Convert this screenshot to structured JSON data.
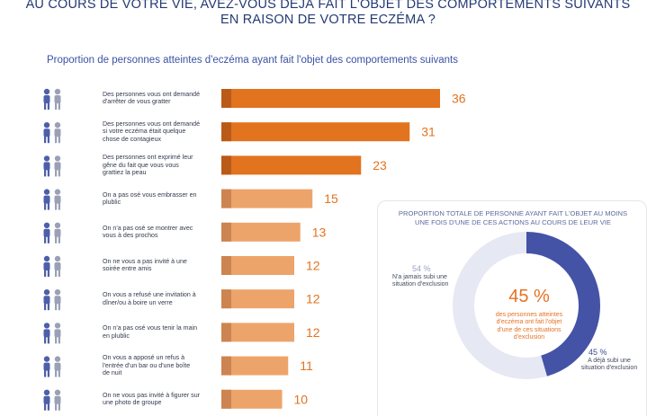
{
  "header": {
    "title_line1": "AU COURS DE VOTRE VIE, AVEZ-VOUS DÉJÀ FAIT L'OBJET DES COMPORTEMENTS SUIVANTS",
    "title_line2": "EN RAISON DE VOTRE ECZÉMA ?",
    "subtitle": "Proportion de personnes atteintes d'eczéma ayant fait l'objet des comportements suivants"
  },
  "colors": {
    "dark_orange": "#e2731f",
    "light_orange": "#eda46b",
    "accent_square_dark": "#b95a17",
    "accent_square_light": "#cc8450",
    "donut_blue": "#4453a6",
    "donut_grey": "#e6e8f3",
    "icon_blue": "#4d5fa8",
    "icon_grey": "#9aa0b6"
  },
  "chart_data": [
    {
      "type": "bar",
      "orientation": "horizontal",
      "categories": [
        "Des personnes vous ont demandé d'arrêter de vous gratter",
        "Des personnes vous ont demandé si votre eczéma était quelque chose de contagieux",
        "Des personnes ont exprimé leur gêne du fait que vous vous grattiez la peau",
        "On a pas osé vous embrasser en plublic",
        "On n'a pas osé se montrer avec vous à des prochos",
        "On ne vous a pas invité à une soirée entre amis",
        "On vous a refusé une invitation à dîner/ou à boire un verre",
        "On n'a pas osé vous tenir la main en plublic",
        "On vous a apposé un refus à l'entrée d'un bar ou d'une boîte de nuit",
        "On ne vous pas invité à figurer sur une photo de groupe"
      ],
      "label_lines": [
        [
          "Des personnes vous ont demandé",
          "d'arrêter de vous gratter"
        ],
        [
          "Des personnes vous ont demandé",
          "si votre eczéma était quelque",
          "chose de contagieux"
        ],
        [
          "Des personnes ont exprimé leur",
          "gêne du fait que vous vous",
          "grattiez la peau"
        ],
        [
          "On a pas osé vous embrasser en",
          "plublic"
        ],
        [
          "On n'a pas osé se montrer avec",
          "vous à des prochos"
        ],
        [
          "On ne vous a pas invité à une",
          "soirée entre amis"
        ],
        [
          "On vous a refusé une invitation à",
          "dîner/ou à boire un verre"
        ],
        [
          "On n'a pas osé vous tenir la main",
          "en plublic"
        ],
        [
          "On vous a apposé un refus à",
          "l'entrée d'un bar ou d'une boîte",
          "de nuit"
        ],
        [
          "On ne vous pas invité à figurer sur",
          "une photo de groupe"
        ]
      ],
      "values": [
        36,
        31,
        23,
        15,
        13,
        12,
        12,
        12,
        11,
        10
      ],
      "value_labels": [
        "36",
        "31",
        "23",
        "15",
        "13",
        "12",
        "12",
        "12",
        "11",
        "10"
      ],
      "bar_shade": [
        "dark",
        "dark",
        "dark",
        "light",
        "light",
        "light",
        "light",
        "light",
        "light",
        "light"
      ],
      "icons": [
        "people-scratching-icon",
        "people-asking-icon",
        "people-discomfort-icon",
        "couple-icon",
        "couple-walking-icon",
        "party-icon",
        "dinner-table-icon",
        "holding-hands-icon",
        "nightclub-refusal-icon",
        "group-photo-icon"
      ],
      "xlim": [
        0,
        36
      ],
      "grid": false,
      "legend": "none"
    },
    {
      "type": "pie",
      "style": "donut",
      "title_line1": "PROPORTION TOTALE DE PERSONNE AYANT FAIT L'OBJET AU MOINS",
      "title_line2": "UNE FOIS D'UNE DE CES ACTIONS AU COURS DE LEUR VIE",
      "slices": [
        {
          "label": "N'a jamais subi une situation d'exclusion",
          "value": 54,
          "value_label": "54 %",
          "desc_lines": [
            "N'a jamais subi une",
            "situation d'exclusion"
          ],
          "color": "#e6e8f3"
        },
        {
          "label": "A déjà subi une situation d'exclusion",
          "value": 45,
          "value_label": "45 %",
          "desc_lines": [
            "A déjà subi une",
            "situation d'exclusion"
          ],
          "color": "#4453a6"
        }
      ],
      "center_value": "45 %",
      "center_desc_lines": [
        "des personnes atteintes",
        "d'eczéma ont fait l'objet",
        "d'une de ces situations",
        "d'exclusion"
      ]
    }
  ]
}
